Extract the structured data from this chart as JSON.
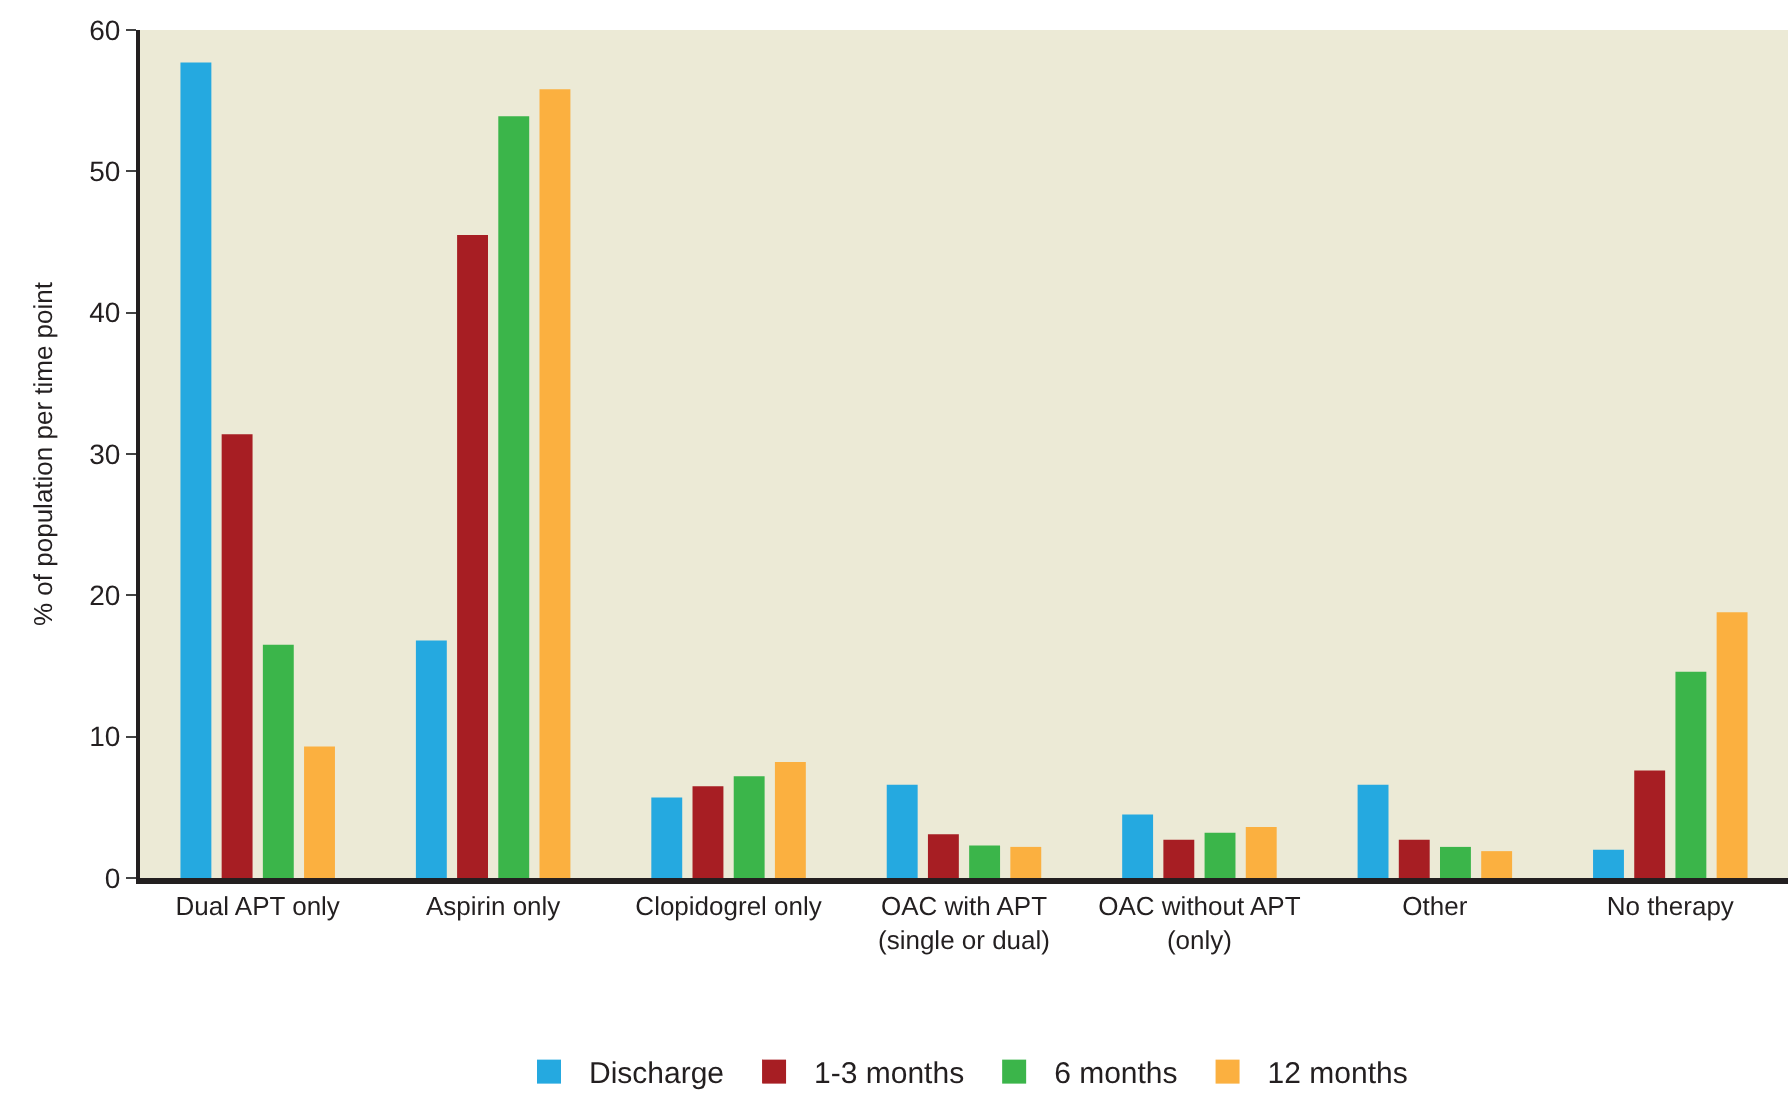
{
  "chart_data": {
    "type": "bar",
    "ylabel": "% of population per time point",
    "categories": [
      "Dual APT only",
      "Aspirin only",
      "Clopidogrel only",
      "OAC with APT\n(single or dual)",
      "OAC without APT\n(only)",
      "Other",
      "No therapy"
    ],
    "series": [
      {
        "name": "Discharge",
        "color": "#25a9e0",
        "values": [
          57.7,
          16.8,
          5.7,
          6.6,
          4.5,
          6.6,
          2.0
        ]
      },
      {
        "name": "1-3 months",
        "color": "#a71e23",
        "values": [
          31.4,
          45.5,
          6.5,
          3.1,
          2.7,
          2.7,
          7.6
        ]
      },
      {
        "name": "6 months",
        "color": "#3bb54a",
        "values": [
          16.5,
          53.9,
          7.2,
          2.3,
          3.2,
          2.2,
          14.6
        ]
      },
      {
        "name": "12 months",
        "color": "#fbb040",
        "values": [
          9.3,
          55.8,
          8.2,
          2.2,
          3.6,
          1.9,
          18.8
        ]
      }
    ],
    "ylim": [
      0,
      60
    ],
    "yticks": [
      0,
      10,
      20,
      30,
      40,
      50,
      60
    ],
    "grid": false,
    "legend": "bottom"
  }
}
